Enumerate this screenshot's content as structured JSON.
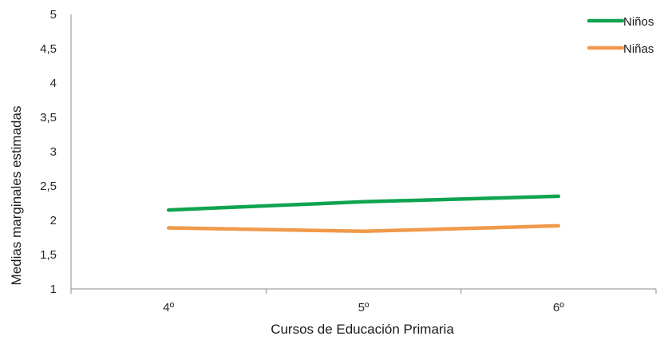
{
  "chart_data": {
    "type": "line",
    "title": "",
    "xlabel": "Cursos de Educación Primaria",
    "ylabel": "Medias marginales estimadas",
    "categories": [
      "4º",
      "5º",
      "6º"
    ],
    "ylim": [
      1,
      5
    ],
    "yticks": [
      "1",
      "1,5",
      "2",
      "2,5",
      "3",
      "3,5",
      "4",
      "4,5",
      "5"
    ],
    "ytick_values": [
      1,
      1.5,
      2,
      2.5,
      3,
      3.5,
      4,
      4.5,
      5
    ],
    "grid": false,
    "legend_position": "top-right",
    "series": [
      {
        "name": "Niños",
        "color": "#0fa44f",
        "values": [
          2.15,
          2.27,
          2.35
        ]
      },
      {
        "name": "Niñas",
        "color": "#f0994a",
        "values": [
          1.89,
          1.84,
          1.92
        ]
      }
    ]
  }
}
